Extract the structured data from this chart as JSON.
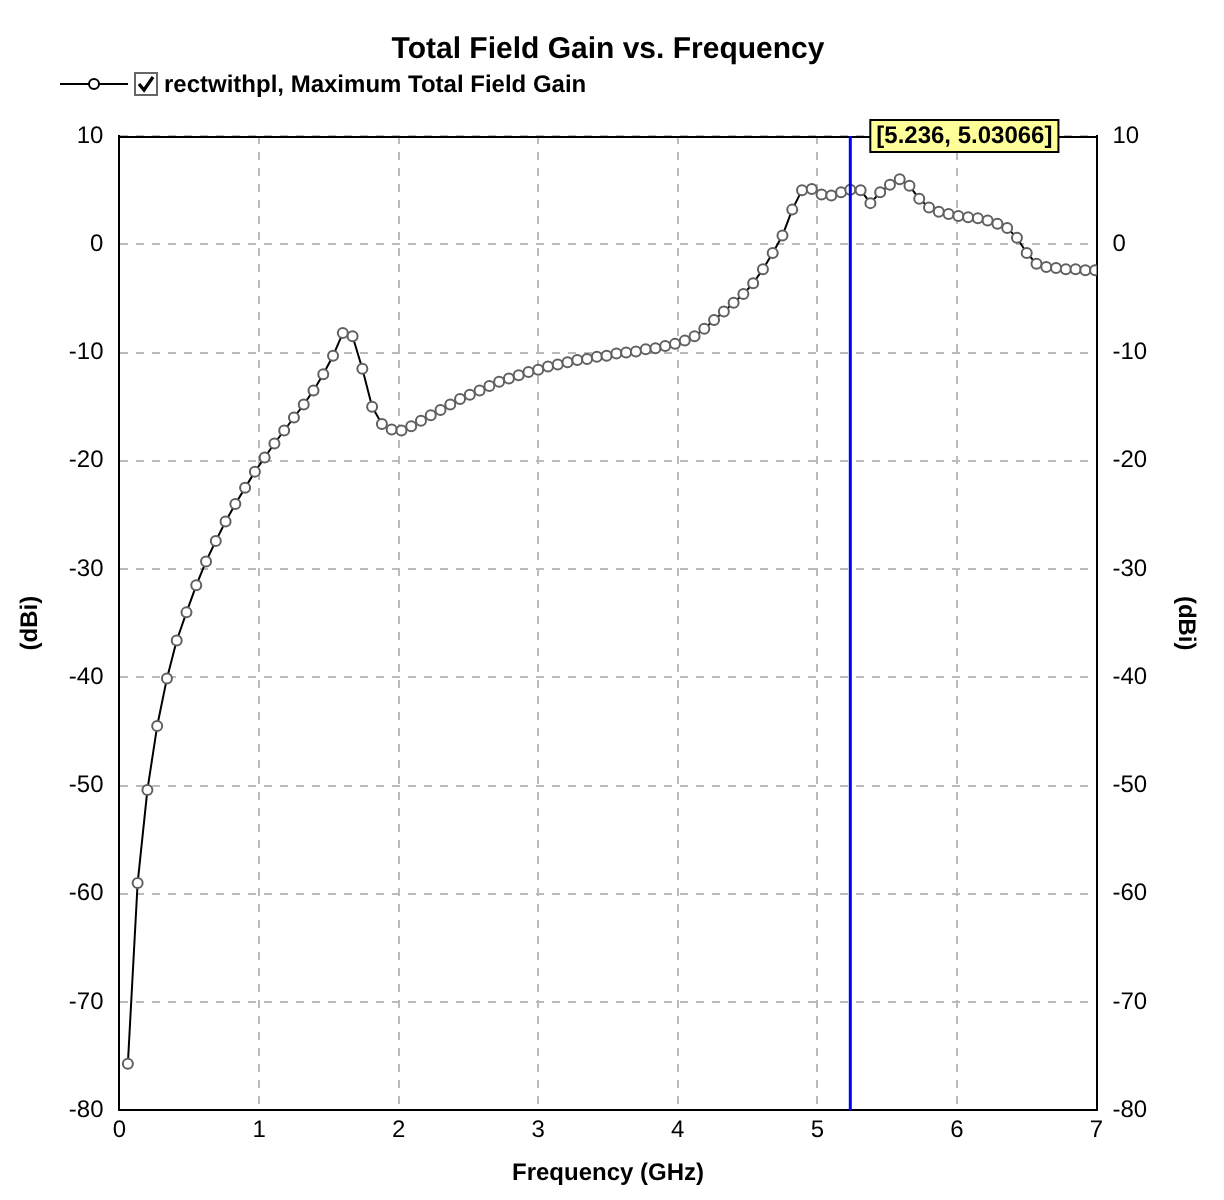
{
  "chart_data": {
    "type": "line",
    "title": "Total Field Gain vs. Frequency",
    "xlabel": "Frequency (GHz)",
    "ylabel": "(dBi)",
    "y2label": "(dBi)",
    "x": [
      0.06,
      0.13,
      0.2,
      0.27,
      0.34,
      0.41,
      0.48,
      0.55,
      0.62,
      0.69,
      0.76,
      0.83,
      0.9,
      0.97,
      1.04,
      1.11,
      1.18,
      1.25,
      1.32,
      1.39,
      1.46,
      1.53,
      1.6,
      1.67,
      1.74,
      1.81,
      1.88,
      1.95,
      2.02,
      2.09,
      2.16,
      2.23,
      2.3,
      2.37,
      2.44,
      2.51,
      2.58,
      2.65,
      2.72,
      2.79,
      2.86,
      2.93,
      3.0,
      3.07,
      3.14,
      3.21,
      3.28,
      3.35,
      3.42,
      3.49,
      3.56,
      3.63,
      3.7,
      3.77,
      3.84,
      3.91,
      3.98,
      4.05,
      4.12,
      4.19,
      4.26,
      4.33,
      4.4,
      4.47,
      4.54,
      4.61,
      4.68,
      4.75,
      4.82,
      4.89,
      4.96,
      5.03,
      5.1,
      5.17,
      5.236,
      5.31,
      5.38,
      5.45,
      5.52,
      5.59,
      5.66,
      5.73,
      5.8,
      5.87,
      5.94,
      6.01,
      6.08,
      6.15,
      6.22,
      6.29,
      6.36,
      6.43,
      6.5,
      6.57,
      6.64,
      6.71,
      6.78,
      6.85,
      6.92,
      6.99
    ],
    "series": [
      {
        "name": "rectwithpl, Maximum Total Field Gain",
        "color": "#000000",
        "values": [
          -75.7,
          -59,
          -50.4,
          -44.5,
          -40.1,
          -36.6,
          -34,
          -31.5,
          -29.3,
          -27.4,
          -25.6,
          -24,
          -22.5,
          -21,
          -19.7,
          -18.4,
          -17.2,
          -16,
          -14.8,
          -13.5,
          -12,
          -10.3,
          -8.2,
          -8.5,
          -11.5,
          -15,
          -16.6,
          -17.1,
          -17.2,
          -16.8,
          -16.3,
          -15.8,
          -15.3,
          -14.8,
          -14.3,
          -13.9,
          -13.5,
          -13.1,
          -12.7,
          -12.4,
          -12.1,
          -11.8,
          -11.6,
          -11.3,
          -11.1,
          -10.9,
          -10.7,
          -10.6,
          -10.4,
          -10.3,
          -10.1,
          -10,
          -9.9,
          -9.7,
          -9.6,
          -9.4,
          -9.2,
          -8.9,
          -8.5,
          -7.8,
          -7,
          -6.2,
          -5.4,
          -4.6,
          -3.6,
          -2.3,
          -0.8,
          0.8,
          3.2,
          5,
          5.1,
          4.6,
          4.5,
          4.8,
          5.03066,
          5,
          3.8,
          4.8,
          5.5,
          6,
          5.4,
          4.2,
          3.4,
          3,
          2.8,
          2.6,
          2.5,
          2.4,
          2.2,
          1.9,
          1.5,
          0.6,
          -0.8,
          -1.8,
          -2.1,
          -2.2,
          -2.3,
          -2.3,
          -2.4,
          -2.4
        ]
      }
    ],
    "xlim": [
      0,
      7
    ],
    "xticks": [
      0,
      1,
      2,
      3,
      4,
      5,
      6,
      7
    ],
    "ylim": [
      -80,
      10
    ],
    "yticks": [
      -80,
      -70,
      -60,
      -50,
      -40,
      -30,
      -20,
      -10,
      0,
      10
    ],
    "y2lim": [
      -80,
      10
    ],
    "y2ticks": [
      -80,
      -70,
      -60,
      -50,
      -40,
      -30,
      -20,
      -10,
      0,
      10
    ],
    "ref_lines": [
      {
        "axis": "x",
        "value": 5.236,
        "label": "[5.236, 5.03066]",
        "color": "#0000ff"
      }
    ],
    "grid": true,
    "legend": "top left",
    "marker": "circle",
    "line_style": "solid"
  }
}
